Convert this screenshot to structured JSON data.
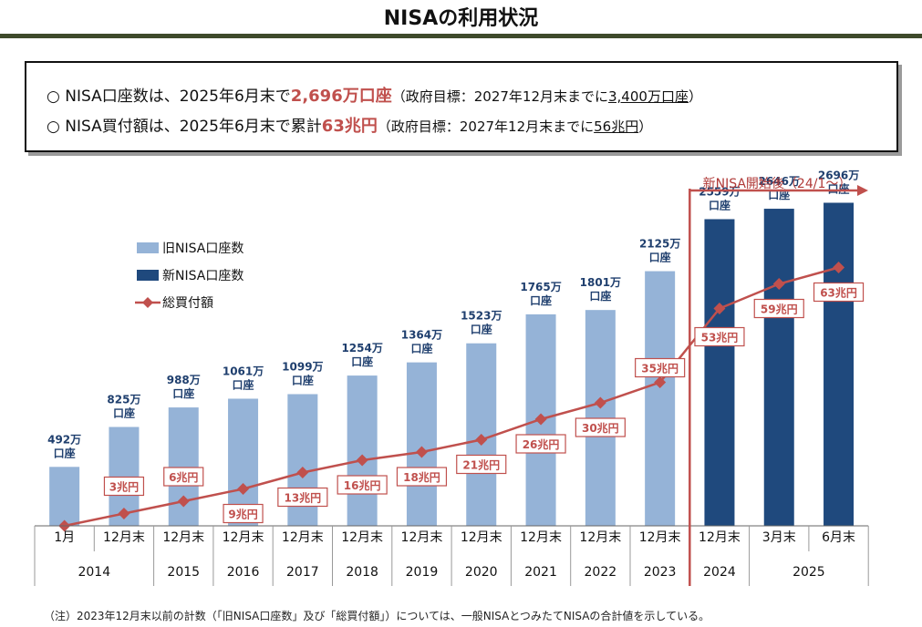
{
  "title": "NISAの利用状況",
  "summary": {
    "line1": {
      "bullet": "○",
      "pre": "NISA口座数は、2025年6月末で",
      "highlight": "2,696万口座",
      "target_pre": "（政府目標：2027年12月末までに",
      "target_value": "3,400万口座",
      "target_post": "）"
    },
    "line2": {
      "bullet": "○",
      "pre": "NISA買付額は、2025年6月末で累計",
      "highlight": "63兆円",
      "target_pre": "（政府目標：2027年12月末までに",
      "target_value": "56兆円",
      "target_post": "）"
    }
  },
  "footnote": "（注）2023年12月末以前の計数（「旧NISA口座数」及び「総買付額」）については、一般NISAとつみたてNISAの合計値を示している。",
  "colors": {
    "old_bar": "#95b3d7",
    "new_bar": "#1f497d",
    "line": "#c0504d"
  },
  "chart_data": {
    "type": "bar",
    "title": "",
    "categories": [
      {
        "label": "1月",
        "year": "2014"
      },
      {
        "label": "12月末",
        "year": "2014"
      },
      {
        "label": "12月末",
        "year": "2015"
      },
      {
        "label": "12月末",
        "year": "2016"
      },
      {
        "label": "12月末",
        "year": "2017"
      },
      {
        "label": "12月末",
        "year": "2018"
      },
      {
        "label": "12月末",
        "year": "2019"
      },
      {
        "label": "12月末",
        "year": "2020"
      },
      {
        "label": "12月末",
        "year": "2021"
      },
      {
        "label": "12月末",
        "year": "2022"
      },
      {
        "label": "12月末",
        "year": "2023"
      },
      {
        "label": "12月末",
        "year": "2024"
      },
      {
        "label": "3月末",
        "year": "2025"
      },
      {
        "label": "6月末",
        "year": "2025"
      }
    ],
    "series": [
      {
        "name": "旧NISA口座数",
        "type": "bar",
        "values": [
          492,
          825,
          988,
          1061,
          1099,
          1254,
          1364,
          1523,
          1765,
          1801,
          2125,
          null,
          null,
          null
        ],
        "labels": [
          "492万口座",
          "825万口座",
          "988万口座",
          "1061万口座",
          "1099万口座",
          "1254万口座",
          "1364万口座",
          "1523万口座",
          "1765万口座",
          "1801万口座",
          "2125万口座",
          "",
          "",
          ""
        ]
      },
      {
        "name": "新NISA口座数",
        "type": "bar",
        "values": [
          null,
          null,
          null,
          null,
          null,
          null,
          null,
          null,
          null,
          null,
          null,
          2559,
          2646,
          2696
        ],
        "labels": [
          "",
          "",
          "",
          "",
          "",
          "",
          "",
          "",
          "",
          "",
          "",
          "2559万口座",
          "2646万口座",
          "2696万口座"
        ]
      },
      {
        "name": "総買付額",
        "type": "line",
        "values": [
          0,
          3,
          6,
          9,
          13,
          16,
          18,
          21,
          26,
          30,
          35,
          53,
          59,
          63
        ],
        "labels": [
          "",
          "3兆円",
          "6兆円",
          "9兆円",
          "13兆円",
          "16兆円",
          "18兆円",
          "21兆円",
          "26兆円",
          "30兆円",
          "35兆円",
          "53兆円",
          "59兆円",
          "63兆円"
        ]
      }
    ],
    "annotation": "新NISA開始後（24/1～）",
    "legend_position": "top-left",
    "grid": false
  }
}
